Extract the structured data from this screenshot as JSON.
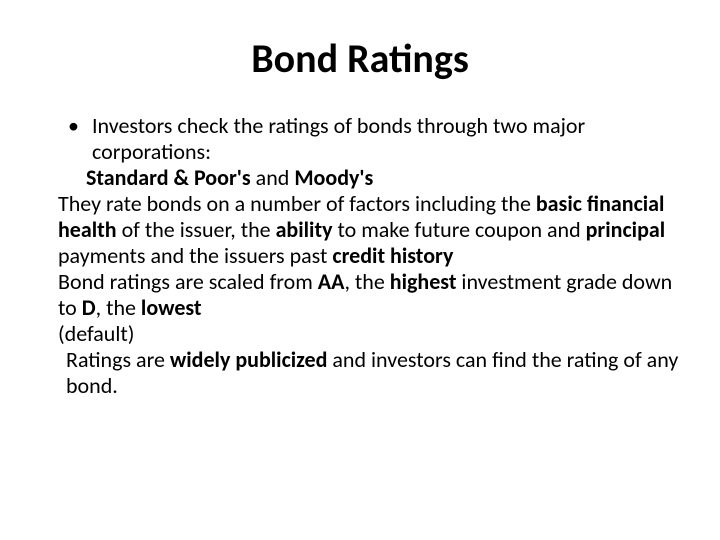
{
  "title_fontsize": 40,
  "body_fontsize": 22,
  "text_color": "#000000",
  "background_color": "#ffffff",
  "title": "Bond Ratings",
  "lines": {
    "l1": "Investors check the ratings of bonds through two major corporations:",
    "l2_a": "Standard & Poor's",
    "l2_b": " and ",
    "l2_c": "Moody's",
    "l3_a": "They rate bonds on a number of factors including the ",
    "l3_b": "basic financial health ",
    "l3_c": "of the issuer, the ",
    "l3_d": "ability ",
    "l3_e": "to make future coupon and ",
    "l3_f": "principal ",
    "l3_g": "payments and the issuers past ",
    "l3_h": "credit history",
    "l4_a": "Bond ratings are scaled from ",
    "l4_b": "AA",
    "l4_c": ", the ",
    "l4_d": "highest ",
    "l4_e": "investment grade down to ",
    "l4_f": "D",
    "l4_g": ", the ",
    "l4_h": "lowest",
    "l5": "(default)",
    "l6_a": "Ratings are ",
    "l6_b": "widely publicized ",
    "l6_c": "and investors can find the rating of any bond."
  }
}
